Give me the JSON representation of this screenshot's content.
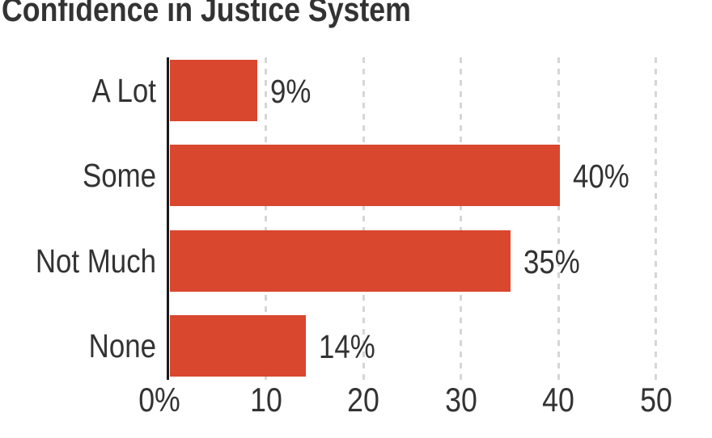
{
  "title": "Confidence in Justice System",
  "colors": {
    "bar": "#d9472e",
    "text": "#333333",
    "axis_line": "#1a1a1a",
    "gridline": "#d6d6d6",
    "background": "#ffffff"
  },
  "chart_data": {
    "type": "bar",
    "orientation": "horizontal",
    "title": "Confidence in Justice System",
    "categories": [
      "A Lot",
      "Some",
      "Not Much",
      "None"
    ],
    "values": [
      9,
      40,
      35,
      14
    ],
    "value_labels": [
      "9%",
      "40%",
      "35%",
      "14%"
    ],
    "xlabel": "",
    "ylabel": "",
    "xlim": [
      0,
      50
    ],
    "x_ticks": [
      0,
      10,
      20,
      30,
      40,
      50
    ],
    "x_tick_labels": [
      "0%",
      "10",
      "20",
      "30",
      "40",
      "50"
    ],
    "grid": "dashed-vertical-gridlines-at-ticks",
    "legend": "none",
    "bar_label_position": "right-of-bar-end",
    "category_label_position": "left-of-axis"
  }
}
